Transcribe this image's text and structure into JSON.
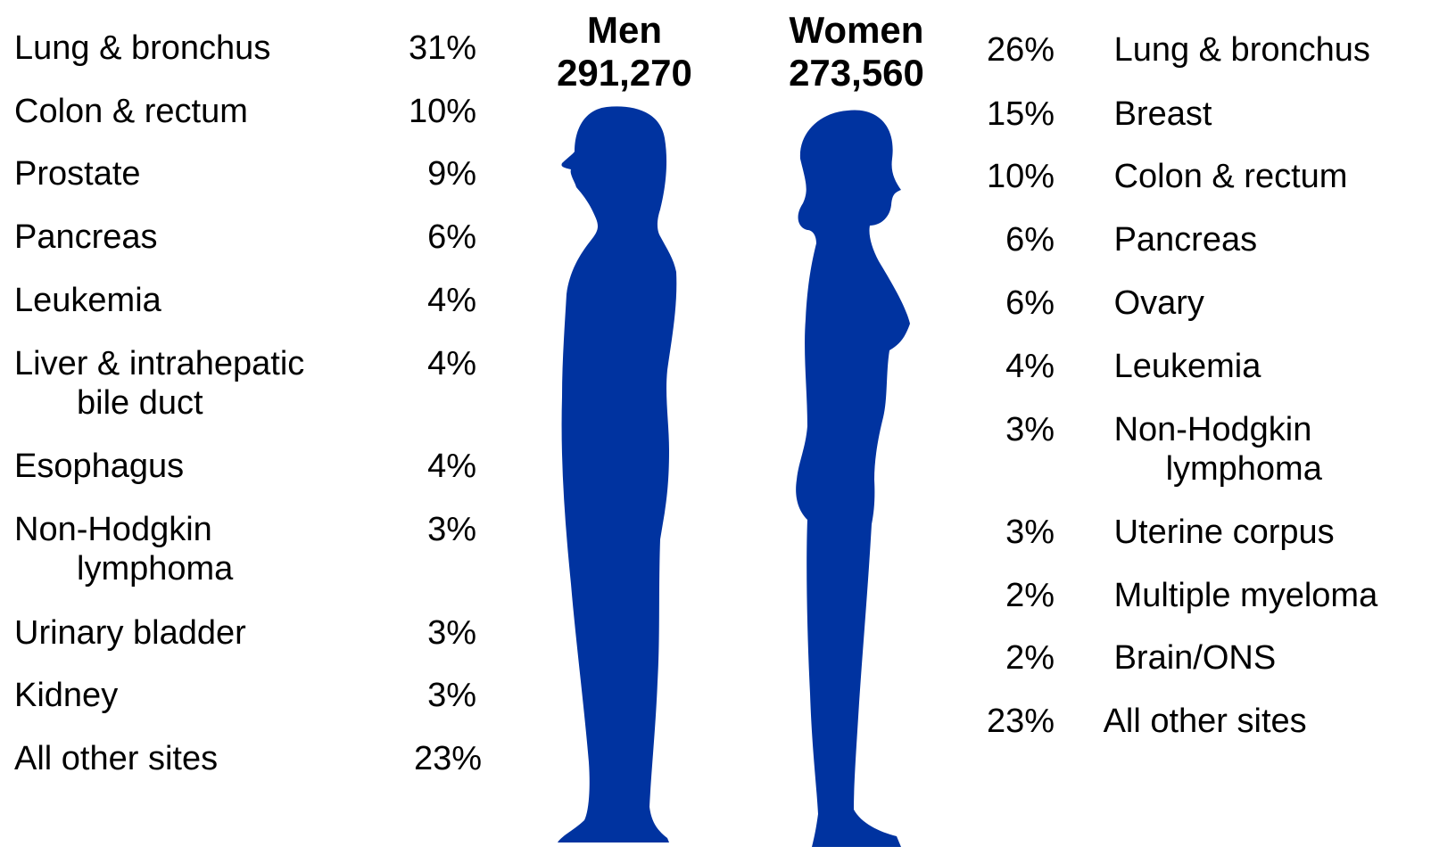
{
  "men": {
    "title": "Men",
    "total": "291,270",
    "items": [
      {
        "site": "Lung & bronchus",
        "pct": "31%"
      },
      {
        "site": "Colon & rectum",
        "pct": "10%"
      },
      {
        "site": "Prostate",
        "pct": "9%"
      },
      {
        "site": "Pancreas",
        "pct": "6%"
      },
      {
        "site": "Leukemia",
        "pct": "4%"
      },
      {
        "site": "Liver & intrahepatic",
        "site_line2": "bile duct",
        "pct": "4%"
      },
      {
        "site": "Esophagus",
        "pct": "4%"
      },
      {
        "site": "Non-Hodgkin",
        "site_line2": "lymphoma",
        "pct": "3%"
      },
      {
        "site": "Urinary bladder",
        "pct": "3%"
      },
      {
        "site": "Kidney",
        "pct": "3%"
      },
      {
        "site": "All other sites",
        "pct": "23%"
      }
    ]
  },
  "women": {
    "title": "Women",
    "total": "273,560",
    "items": [
      {
        "pct": "26%",
        "site": "Lung & bronchus"
      },
      {
        "pct": "15%",
        "site": "Breast"
      },
      {
        "pct": "10%",
        "site": "Colon & rectum"
      },
      {
        "pct": "6%",
        "site": "Pancreas"
      },
      {
        "pct": "6%",
        "site": "Ovary"
      },
      {
        "pct": "4%",
        "site": "Leukemia"
      },
      {
        "pct": "3%",
        "site": "Non-Hodgkin",
        "site_line2": "lymphoma"
      },
      {
        "pct": "3%",
        "site": "Uterine corpus"
      },
      {
        "pct": "2%",
        "site": "Multiple myeloma"
      },
      {
        "pct": "2%",
        "site": "Brain/ONS"
      },
      {
        "pct": "23%",
        "site": "All other sites"
      }
    ]
  },
  "colors": {
    "silhouette": "#0033A0",
    "text": "#000000"
  }
}
